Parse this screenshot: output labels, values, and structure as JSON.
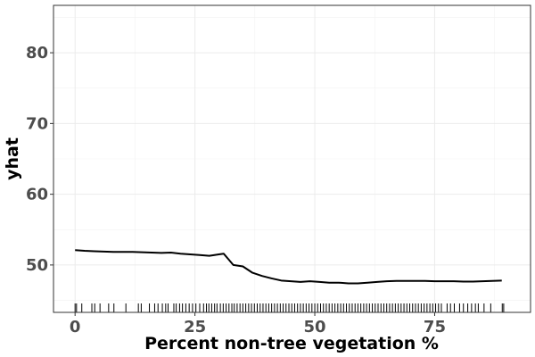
{
  "chart_data": {
    "type": "line",
    "title": "",
    "xlabel": "Percent non-tree vegetation %",
    "ylabel": "yhat",
    "xlim": [
      -4.5,
      95
    ],
    "ylim": [
      43.3,
      86.7
    ],
    "x_ticks": [
      0,
      25,
      50,
      75
    ],
    "y_ticks": [
      50,
      60,
      70,
      80
    ],
    "x_tick_labels": [
      "0",
      "25",
      "50",
      "75"
    ],
    "y_tick_labels": [
      "50",
      "60",
      "70",
      "80"
    ],
    "grid": true,
    "legend": "none",
    "series": [
      {
        "x": [
          0,
          2,
          4,
          6,
          8,
          10,
          12,
          14,
          16,
          18,
          20,
          22,
          24,
          26,
          28,
          30,
          31,
          33,
          35,
          37,
          39,
          41,
          43,
          45,
          47,
          49,
          51,
          53,
          55,
          57,
          59,
          61,
          63,
          65,
          67,
          69,
          71,
          73,
          75,
          77,
          79,
          81,
          83,
          85,
          87,
          89
        ],
        "values": [
          52.1,
          52.0,
          51.95,
          51.9,
          51.85,
          51.85,
          51.85,
          51.8,
          51.75,
          51.7,
          51.75,
          51.6,
          51.5,
          51.4,
          51.3,
          51.5,
          51.6,
          50.0,
          49.8,
          48.9,
          48.45,
          48.1,
          47.8,
          47.7,
          47.6,
          47.7,
          47.6,
          47.5,
          47.5,
          47.4,
          47.4,
          47.5,
          47.6,
          47.7,
          47.75,
          47.75,
          47.75,
          47.75,
          47.7,
          47.7,
          47.7,
          47.65,
          47.65,
          47.7,
          47.75,
          47.8
        ],
        "color": "#000000"
      }
    ],
    "rug_x": [
      0,
      0.3,
      1.4,
      3.5,
      4.1,
      5.2,
      7.0,
      8.1,
      10.6,
      13.2,
      13.8,
      15.5,
      16.6,
      17.3,
      18.2,
      18.9,
      19.4,
      20.6,
      21.1,
      21.8,
      22.4,
      23.1,
      23.8,
      24.5,
      25.2,
      26.0,
      26.8,
      27.4,
      27.9,
      28.5,
      29.1,
      29.6,
      30.3,
      30.9,
      31.5,
      32.1,
      32.7,
      33.2,
      33.8,
      34.4,
      35.0,
      35.6,
      36.2,
      36.8,
      37.4,
      38.0,
      38.6,
      39.2,
      39.8,
      40.4,
      41.0,
      41.6,
      42.2,
      42.8,
      43.4,
      44.0,
      44.6,
      45.2,
      45.8,
      46.4,
      47.0,
      47.6,
      48.2,
      48.8,
      49.4,
      50.0,
      50.6,
      51.2,
      51.8,
      52.4,
      53.0,
      53.6,
      54.2,
      54.8,
      55.4,
      56.0,
      56.6,
      57.2,
      57.8,
      58.4,
      59.0,
      59.6,
      60.2,
      60.8,
      61.4,
      62.0,
      62.6,
      63.2,
      63.8,
      64.4,
      65.0,
      65.6,
      66.2,
      66.8,
      67.4,
      68.0,
      68.6,
      69.2,
      69.8,
      70.4,
      71.0,
      71.6,
      72.2,
      72.8,
      73.4,
      74.0,
      74.6,
      75.2,
      75.8,
      76.4,
      77.6,
      78.3,
      79.1,
      80.2,
      81.0,
      81.9,
      82.7,
      83.5,
      84.1,
      85.3,
      86.7,
      89.1,
      89.4
    ]
  }
}
